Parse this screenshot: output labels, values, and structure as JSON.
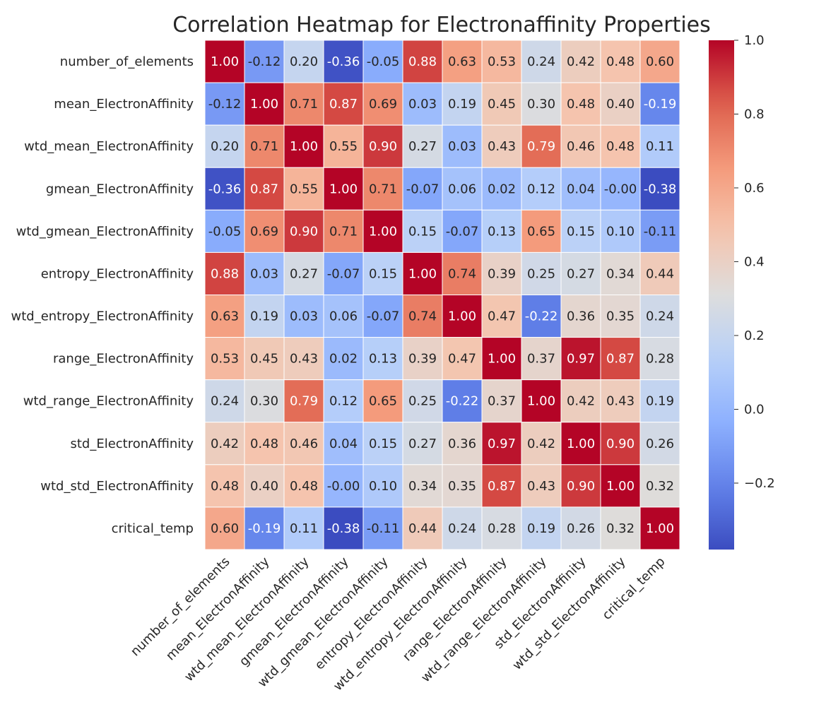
{
  "chart_data": {
    "type": "heatmap",
    "title": "Correlation Heatmap for Electronaffinity Properties",
    "xlabel": "",
    "ylabel": "",
    "variables": [
      "number_of_elements",
      "mean_ElectronAffinity",
      "wtd_mean_ElectronAffinity",
      "gmean_ElectronAffinity",
      "wtd_gmean_ElectronAffinity",
      "entropy_ElectronAffinity",
      "wtd_entropy_ElectronAffinity",
      "range_ElectronAffinity",
      "wtd_range_ElectronAffinity",
      "std_ElectronAffinity",
      "wtd_std_ElectronAffinity",
      "critical_temp"
    ],
    "matrix": [
      [
        1.0,
        -0.12,
        0.2,
        -0.36,
        -0.05,
        0.88,
        0.63,
        0.53,
        0.24,
        0.42,
        0.48,
        0.6
      ],
      [
        -0.12,
        1.0,
        0.71,
        0.87,
        0.69,
        0.03,
        0.19,
        0.45,
        0.3,
        0.48,
        0.4,
        -0.19
      ],
      [
        0.2,
        0.71,
        1.0,
        0.55,
        0.9,
        0.27,
        0.03,
        0.43,
        0.79,
        0.46,
        0.48,
        0.11
      ],
      [
        -0.36,
        0.87,
        0.55,
        1.0,
        0.71,
        -0.07,
        0.06,
        0.02,
        0.12,
        0.04,
        -0.0,
        -0.38
      ],
      [
        -0.05,
        0.69,
        0.9,
        0.71,
        1.0,
        0.15,
        -0.07,
        0.13,
        0.65,
        0.15,
        0.1,
        -0.11
      ],
      [
        0.88,
        0.03,
        0.27,
        -0.07,
        0.15,
        1.0,
        0.74,
        0.39,
        0.25,
        0.27,
        0.34,
        0.44
      ],
      [
        0.63,
        0.19,
        0.03,
        0.06,
        -0.07,
        0.74,
        1.0,
        0.47,
        -0.22,
        0.36,
        0.35,
        0.24
      ],
      [
        0.53,
        0.45,
        0.43,
        0.02,
        0.13,
        0.39,
        0.47,
        1.0,
        0.37,
        0.97,
        0.87,
        0.28
      ],
      [
        0.24,
        0.3,
        0.79,
        0.12,
        0.65,
        0.25,
        -0.22,
        0.37,
        1.0,
        0.42,
        0.43,
        0.19
      ],
      [
        0.42,
        0.48,
        0.46,
        0.04,
        0.15,
        0.27,
        0.36,
        0.97,
        0.42,
        1.0,
        0.9,
        0.26
      ],
      [
        0.48,
        0.4,
        0.48,
        -0.0,
        0.1,
        0.34,
        0.35,
        0.87,
        0.43,
        0.9,
        1.0,
        0.32
      ],
      [
        0.6,
        -0.19,
        0.11,
        -0.38,
        -0.11,
        0.44,
        0.24,
        0.28,
        0.19,
        0.26,
        0.32,
        1.0
      ]
    ],
    "colormap": "coolwarm",
    "vmin": -0.38,
    "vmax": 1.0,
    "colorbar_ticks": [
      1.0,
      0.8,
      0.6,
      0.4,
      0.2,
      0.0,
      -0.2
    ],
    "colorbar_tick_labels": [
      "1.0",
      "0.8",
      "0.6",
      "0.4",
      "0.2",
      "0.0",
      "−0.2"
    ],
    "annotations": true,
    "annotation_format": "0.00",
    "grid": false,
    "legend": "colorbar-right"
  }
}
